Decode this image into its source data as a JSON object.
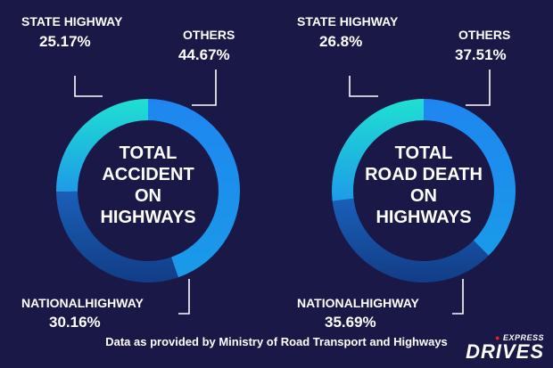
{
  "footer": {
    "note": "Data as provided by Ministry of Road Transport and Highways"
  },
  "brand": {
    "top": "EXPRESS",
    "main": "DRIVES"
  },
  "chart_data": [
    {
      "type": "pie",
      "center_title": [
        "TOTAL",
        "ACCIDENT",
        "ON",
        "HIGHWAYS"
      ],
      "labels": [
        "STATE HIGHWAY",
        "OTHERS",
        "NATIONALHIGHWAY"
      ],
      "values": [
        25.17,
        44.67,
        30.16
      ],
      "value_labels": [
        "25.17%",
        "44.67%",
        "30.16%"
      ],
      "colors": [
        "#1fd2d6",
        "#1e88e8",
        "#14479c"
      ]
    },
    {
      "type": "pie",
      "center_title": [
        "TOTAL",
        "ROAD DEATH",
        "ON",
        "HIGHWAYS"
      ],
      "labels": [
        "STATE HIGHWAY",
        "OTHERS",
        "NATIONALHIGHWAY"
      ],
      "values": [
        26.8,
        37.51,
        35.69
      ],
      "value_labels": [
        "26.8%",
        "37.51%",
        "35.69%"
      ],
      "colors": [
        "#1fd2d6",
        "#1e88e8",
        "#14479c"
      ]
    }
  ]
}
